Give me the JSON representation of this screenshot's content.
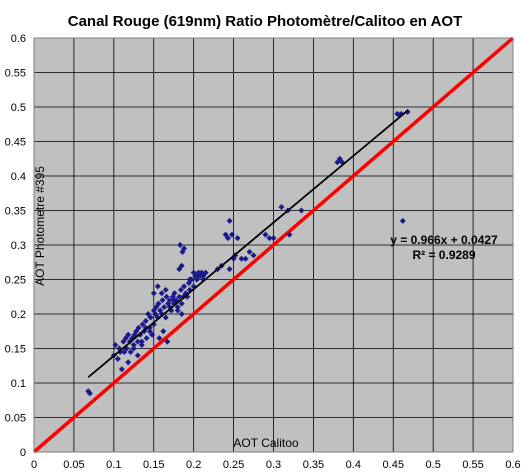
{
  "chart_data": {
    "type": "scatter",
    "title": "Canal Rouge (619nm)  Ratio Photomètre/Calitoo  en AOT",
    "xlabel": "AOT Calitoo",
    "ylabel": "AOT Photometre #395",
    "xlim": [
      0,
      0.6
    ],
    "ylim": [
      0,
      0.6
    ],
    "x_ticks": [
      "0",
      "0.05",
      "0.1",
      "0.15",
      "0.2",
      "0.25",
      "0.3",
      "0.35",
      "0.4",
      "0.45",
      "0.5",
      "0.55",
      "0.6"
    ],
    "y_ticks": [
      "0",
      "0.05",
      "0.1",
      "0.15",
      "0.2",
      "0.25",
      "0.3",
      "0.35",
      "0.4",
      "0.45",
      "0.5",
      "0.55",
      "0.6"
    ],
    "grid": true,
    "legend": "none",
    "colors": {
      "plot_bg": "#c0c0c0",
      "points": "#1a1a8c",
      "trendline": "#000000",
      "identity_line": "#ff0000"
    },
    "series": [
      {
        "type": "scatter",
        "x": [
          0.068,
          0.07,
          0.1,
          0.102,
          0.105,
          0.107,
          0.108,
          0.11,
          0.112,
          0.113,
          0.115,
          0.116,
          0.118,
          0.12,
          0.121,
          0.123,
          0.125,
          0.126,
          0.128,
          0.13,
          0.131,
          0.133,
          0.135,
          0.136,
          0.138,
          0.14,
          0.141,
          0.143,
          0.145,
          0.146,
          0.148,
          0.15,
          0.15,
          0.152,
          0.153,
          0.155,
          0.156,
          0.158,
          0.16,
          0.161,
          0.163,
          0.165,
          0.166,
          0.168,
          0.17,
          0.172,
          0.174,
          0.175,
          0.176,
          0.178,
          0.18,
          0.182,
          0.184,
          0.185,
          0.187,
          0.188,
          0.19,
          0.192,
          0.194,
          0.195,
          0.197,
          0.2,
          0.202,
          0.204,
          0.206,
          0.208,
          0.21,
          0.212,
          0.15,
          0.155,
          0.16,
          0.165,
          0.17,
          0.175,
          0.18,
          0.185,
          0.14,
          0.135,
          0.145,
          0.125,
          0.13,
          0.118,
          0.157,
          0.162,
          0.167,
          0.183,
          0.186,
          0.188,
          0.182,
          0.185,
          0.24,
          0.243,
          0.245,
          0.248,
          0.25,
          0.252,
          0.255,
          0.26,
          0.265,
          0.27,
          0.275,
          0.23,
          0.235,
          0.245,
          0.29,
          0.295,
          0.3,
          0.31,
          0.318,
          0.32,
          0.335,
          0.38,
          0.383,
          0.386,
          0.455,
          0.458,
          0.46,
          0.468,
          0.462,
          0.195,
          0.2,
          0.205,
          0.212,
          0.215
        ],
        "y": [
          0.088,
          0.085,
          0.14,
          0.155,
          0.135,
          0.15,
          0.145,
          0.12,
          0.16,
          0.145,
          0.165,
          0.15,
          0.17,
          0.16,
          0.145,
          0.165,
          0.15,
          0.17,
          0.175,
          0.16,
          0.18,
          0.17,
          0.155,
          0.185,
          0.175,
          0.19,
          0.165,
          0.2,
          0.18,
          0.195,
          0.17,
          0.205,
          0.185,
          0.2,
          0.21,
          0.195,
          0.215,
          0.205,
          0.2,
          0.22,
          0.21,
          0.195,
          0.225,
          0.215,
          0.22,
          0.205,
          0.225,
          0.215,
          0.23,
          0.22,
          0.21,
          0.225,
          0.235,
          0.215,
          0.225,
          0.24,
          0.23,
          0.225,
          0.245,
          0.235,
          0.25,
          0.24,
          0.255,
          0.25,
          0.26,
          0.255,
          0.26,
          0.25,
          0.23,
          0.24,
          0.23,
          0.235,
          0.21,
          0.22,
          0.205,
          0.2,
          0.18,
          0.16,
          0.175,
          0.155,
          0.14,
          0.13,
          0.165,
          0.175,
          0.16,
          0.3,
          0.29,
          0.295,
          0.265,
          0.27,
          0.315,
          0.31,
          0.335,
          0.315,
          0.28,
          0.285,
          0.31,
          0.28,
          0.28,
          0.29,
          0.285,
          0.265,
          0.27,
          0.265,
          0.315,
          0.31,
          0.31,
          0.355,
          0.35,
          0.315,
          0.35,
          0.42,
          0.425,
          0.42,
          0.49,
          0.488,
          0.49,
          0.493,
          0.335,
          0.25,
          0.26,
          0.255,
          0.255,
          0.26
        ]
      }
    ],
    "trendline": {
      "slope": 0.966,
      "intercept": 0.0427,
      "x_range": [
        0.068,
        0.468
      ],
      "color": "#000000"
    },
    "identity_line": {
      "slope": 1,
      "intercept": 0,
      "color": "#ff0000"
    },
    "annotations": {
      "equation": "y = 0.966x + 0.0427",
      "r_squared": "R² = 0.9289"
    }
  }
}
